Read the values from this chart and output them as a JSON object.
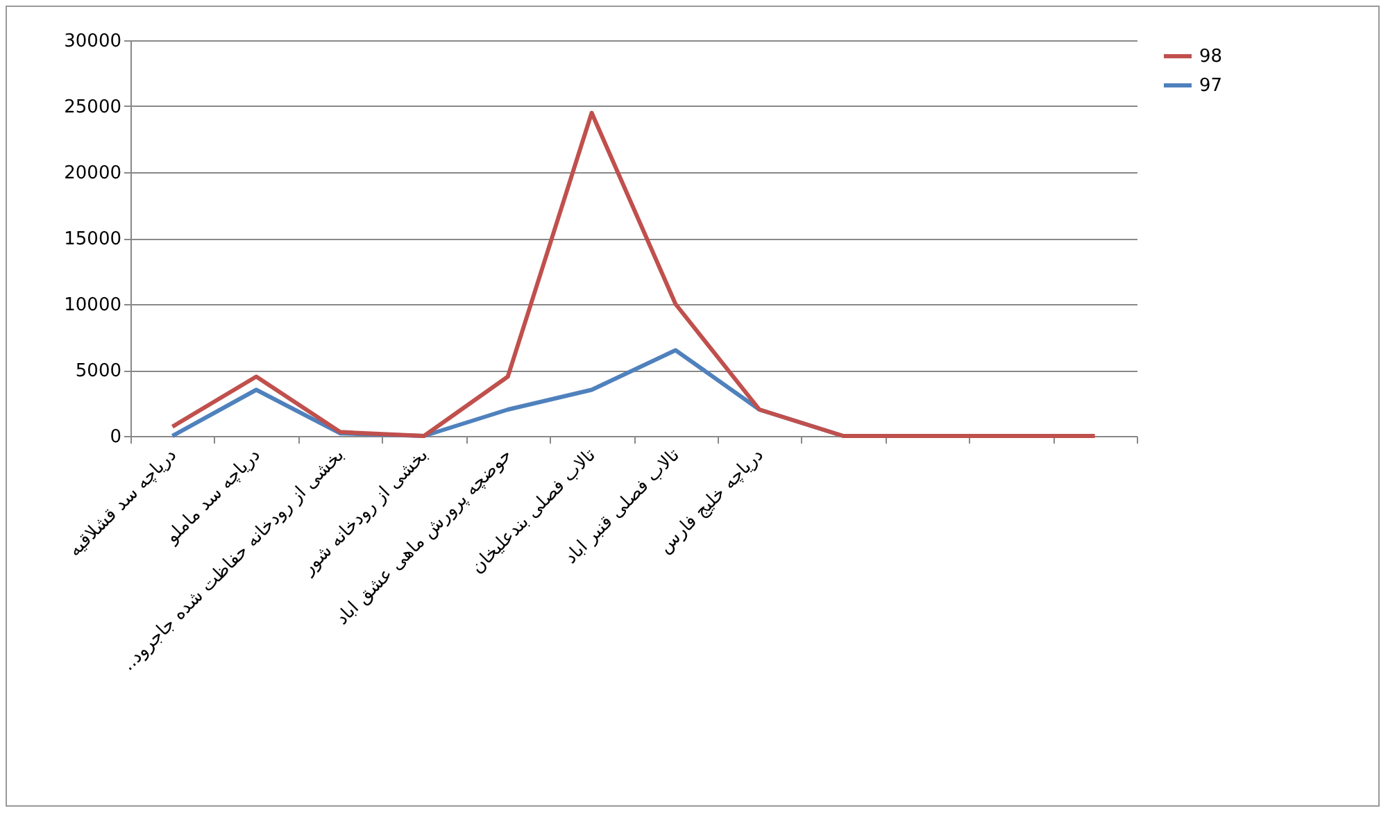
{
  "chart_data": {
    "type": "line",
    "categories": [
      "دریاچه سد قشلاقیه",
      "دریاچه سد ماملو",
      "بخشی از رودخانه حفاظت شده جاجرود..",
      "بخشی از رودخانه شور",
      "حوضچه پرورش ماهی عشق اباد",
      "تالاب فصلی بندعلیخان",
      "تالاب فصلی قنبر اباد",
      "دریاچه خلیج فارس",
      null,
      null,
      null,
      null
    ],
    "series": [
      {
        "name": "98",
        "color": "#c0504d",
        "values": [
          700,
          4500,
          300,
          0,
          4500,
          24500,
          10000,
          2000,
          0,
          0,
          0,
          0
        ]
      },
      {
        "name": "97",
        "color": "#4f81bd",
        "values": [
          0,
          3500,
          200,
          0,
          2000,
          3500,
          6500,
          2000,
          0,
          null,
          null,
          null
        ]
      }
    ],
    "ylim": [
      0,
      30000
    ],
    "yticks": [
      0,
      5000,
      10000,
      15000,
      20000,
      25000,
      30000
    ],
    "grid": "y",
    "legend": "right",
    "marker": "none",
    "line_style": "solid"
  }
}
